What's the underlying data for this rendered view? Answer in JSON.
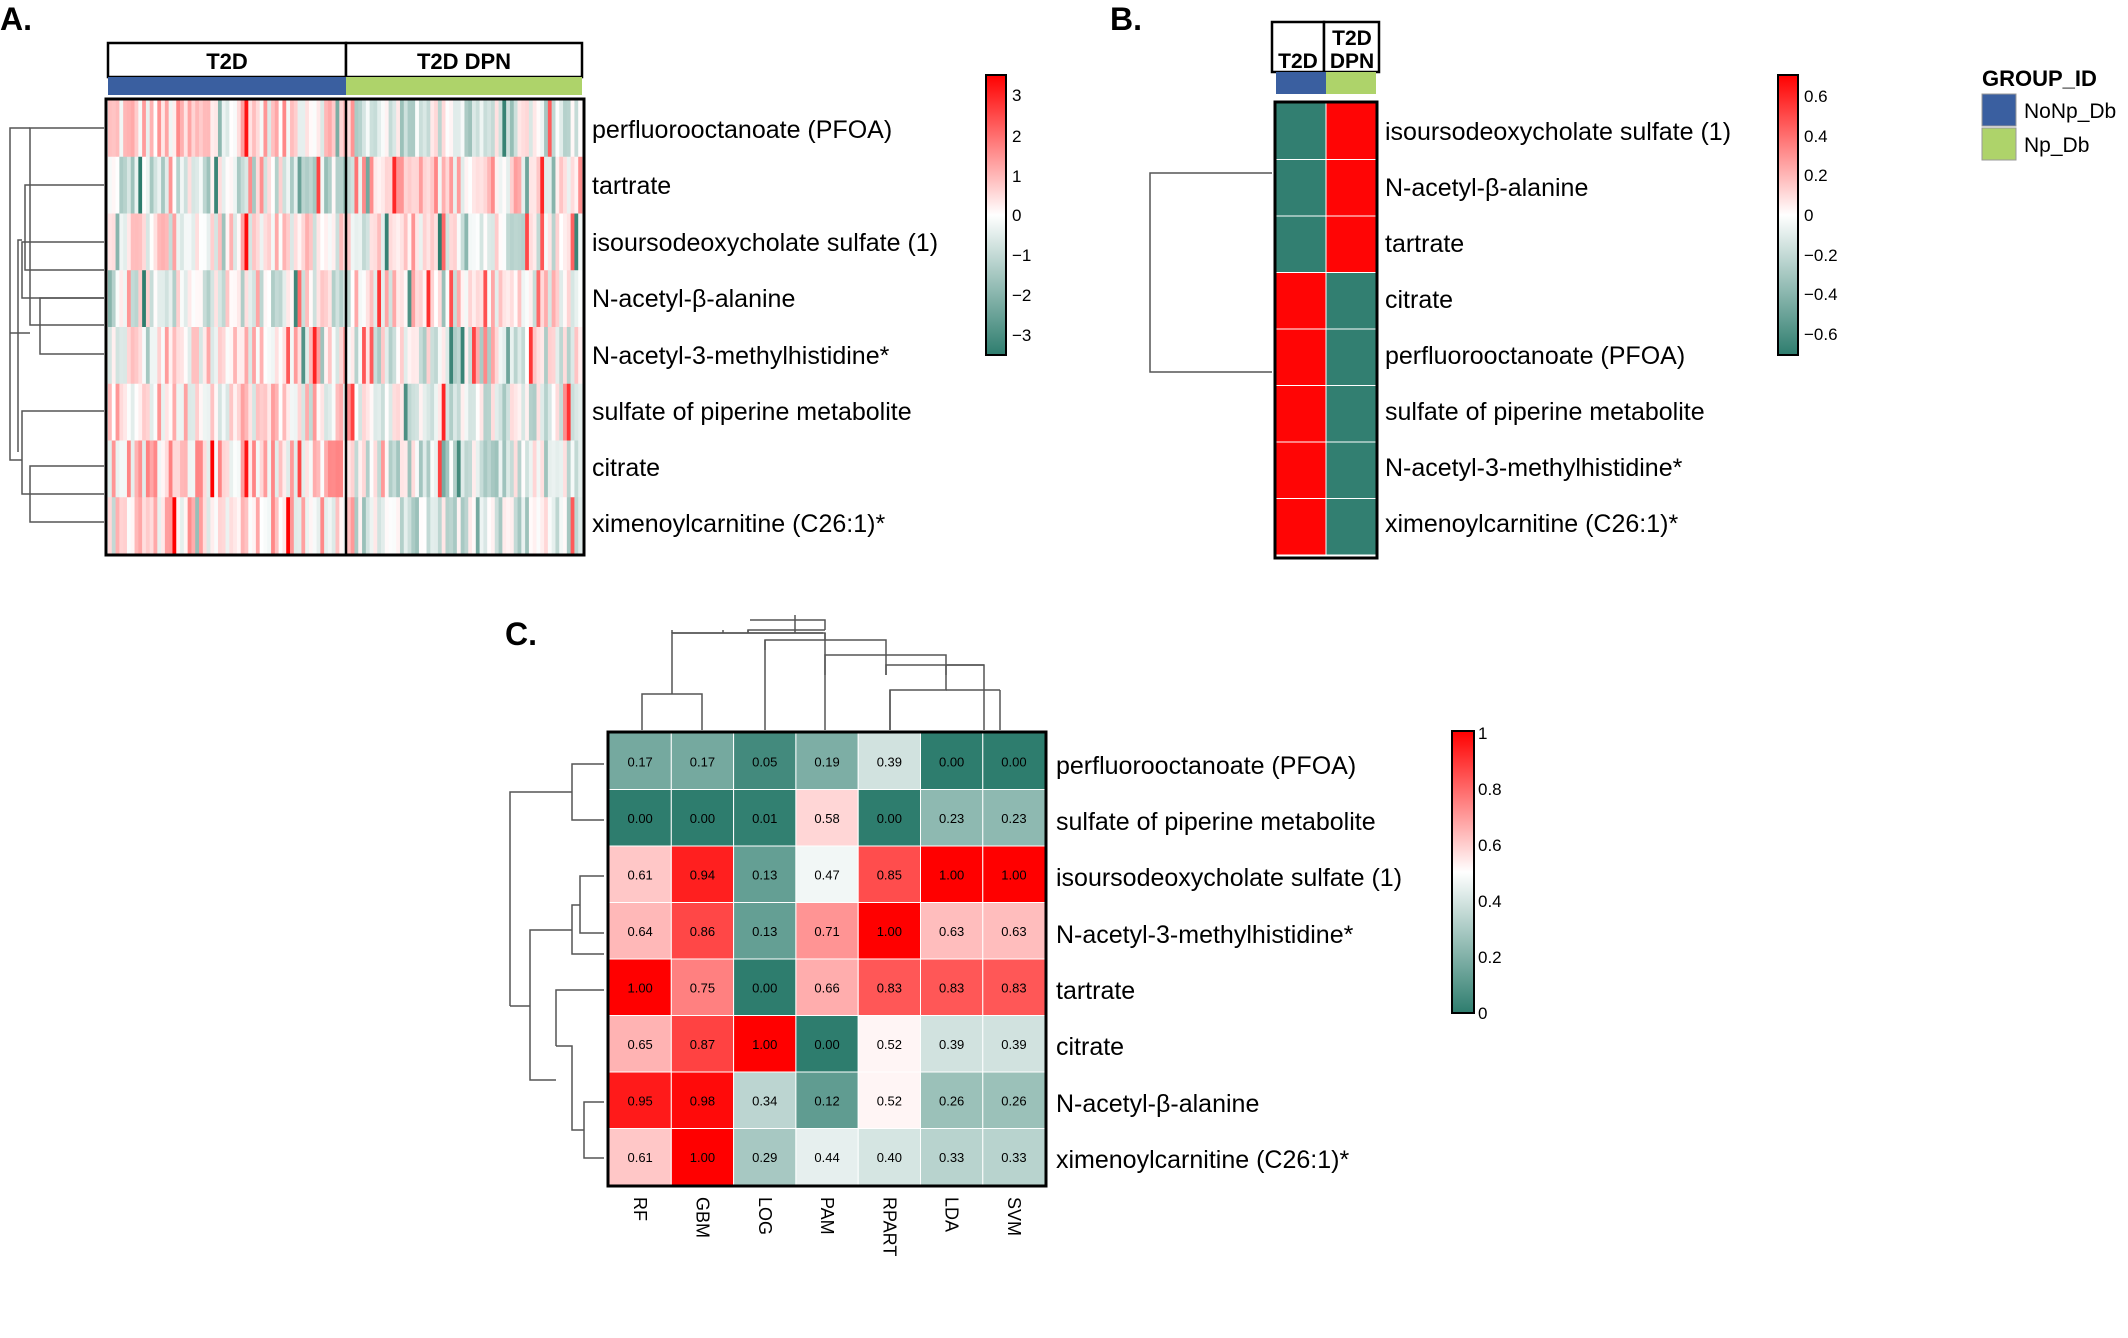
{
  "colors": {
    "low": "#2e7d6e",
    "mid": "#ffffff",
    "high": "#ff0000",
    "group_NoNp_Db": "#3a5fa0",
    "group_Np_Db": "#aed36a"
  },
  "chart_data": [
    {
      "panel": "A.",
      "type": "heatmap",
      "column_groups": [
        {
          "label": "T2D",
          "group": "NoNp_Db",
          "columns": 65
        },
        {
          "label": "T2D DPN",
          "group": "Np_Db",
          "columns": 60
        }
      ],
      "rows": [
        "perfluorooctanoate (PFOA)",
        "tartrate",
        "isoursodeoxycholate sulfate (1)",
        "N-acetyl-β-alanine",
        "N-acetyl-3-methylhistidine*",
        "sulfate of piperine metabolite",
        "citrate",
        "ximenoylcarnitine (C26:1)*"
      ],
      "row_means_by_group": [
        [
          0.5,
          -0.55
        ],
        [
          -0.6,
          0.6
        ],
        [
          0.15,
          -0.15
        ],
        [
          -0.25,
          0.2
        ],
        [
          0.35,
          -0.3
        ],
        [
          0.4,
          -0.35
        ],
        [
          0.6,
          -0.5
        ],
        [
          0.5,
          -0.55
        ]
      ],
      "legend": {
        "range": [
          -3.4,
          3.4
        ],
        "ticks": [
          3,
          2,
          1,
          0,
          -1,
          -2,
          -3
        ],
        "tick_labels": [
          "3",
          "2",
          "1",
          "0",
          "−1",
          "−2",
          "−3"
        ]
      }
    },
    {
      "panel": "B.",
      "type": "heatmap",
      "columns": [
        "T2D",
        "T2D DPN"
      ],
      "column_groups": [
        "NoNp_Db",
        "Np_Db"
      ],
      "rows": [
        "isoursodeoxycholate sulfate (1)",
        "N-acetyl-β-alanine",
        "tartrate",
        "citrate",
        "perfluorooctanoate (PFOA)",
        "sulfate of piperine metabolite",
        "N-acetyl-3-methylhistidine*",
        "ximenoylcarnitine (C26:1)*"
      ],
      "values": [
        [
          -0.707,
          0.707
        ],
        [
          -0.707,
          0.707
        ],
        [
          -0.707,
          0.707
        ],
        [
          0.707,
          -0.707
        ],
        [
          0.707,
          -0.707
        ],
        [
          0.707,
          -0.707
        ],
        [
          0.707,
          -0.707
        ],
        [
          0.707,
          -0.707
        ]
      ],
      "legend": {
        "range": [
          -0.72,
          0.72
        ],
        "ticks": [
          0.6,
          0.4,
          0.2,
          0,
          -0.2,
          -0.4,
          -0.6
        ],
        "tick_labels": [
          "0.6",
          "0.4",
          "0.2",
          "0",
          "−0.2",
          "−0.4",
          "−0.6"
        ],
        "group_title": "GROUP_ID",
        "group_entries": [
          {
            "label": "NoNp_Db",
            "group": "NoNp_Db"
          },
          {
            "label": "Np_Db",
            "group": "Np_Db"
          }
        ]
      }
    },
    {
      "panel": "C.",
      "type": "heatmap",
      "columns": [
        "RF",
        "GBM",
        "LOG",
        "PAM",
        "RPART",
        "LDA",
        "SVM"
      ],
      "rows": [
        "perfluorooctanoate (PFOA)",
        "sulfate of piperine metabolite",
        "isoursodeoxycholate sulfate (1)",
        "N-acetyl-3-methylhistidine*",
        "tartrate",
        "citrate",
        "N-acetyl-β-alanine",
        "ximenoylcarnitine (C26:1)*"
      ],
      "values": [
        [
          0.17,
          0.17,
          0.05,
          0.19,
          0.39,
          0.0,
          0.0
        ],
        [
          0.0,
          0.0,
          0.01,
          0.58,
          0.0,
          0.23,
          0.23
        ],
        [
          0.61,
          0.94,
          0.13,
          0.47,
          0.85,
          1.0,
          1.0
        ],
        [
          0.64,
          0.86,
          0.13,
          0.71,
          1.0,
          0.63,
          0.63
        ],
        [
          1.0,
          0.75,
          0.0,
          0.66,
          0.83,
          0.83,
          0.83
        ],
        [
          0.65,
          0.87,
          1.0,
          0.0,
          0.52,
          0.39,
          0.39
        ],
        [
          0.95,
          0.98,
          0.34,
          0.12,
          0.52,
          0.26,
          0.26
        ],
        [
          0.61,
          1.0,
          0.29,
          0.44,
          0.4,
          0.33,
          0.33
        ]
      ],
      "legend": {
        "range": [
          0,
          1
        ],
        "ticks": [
          1,
          0.8,
          0.6,
          0.4,
          0.2,
          0
        ],
        "tick_labels": [
          "1",
          "0.8",
          "0.6",
          "0.4",
          "0.2",
          "0"
        ]
      }
    }
  ]
}
